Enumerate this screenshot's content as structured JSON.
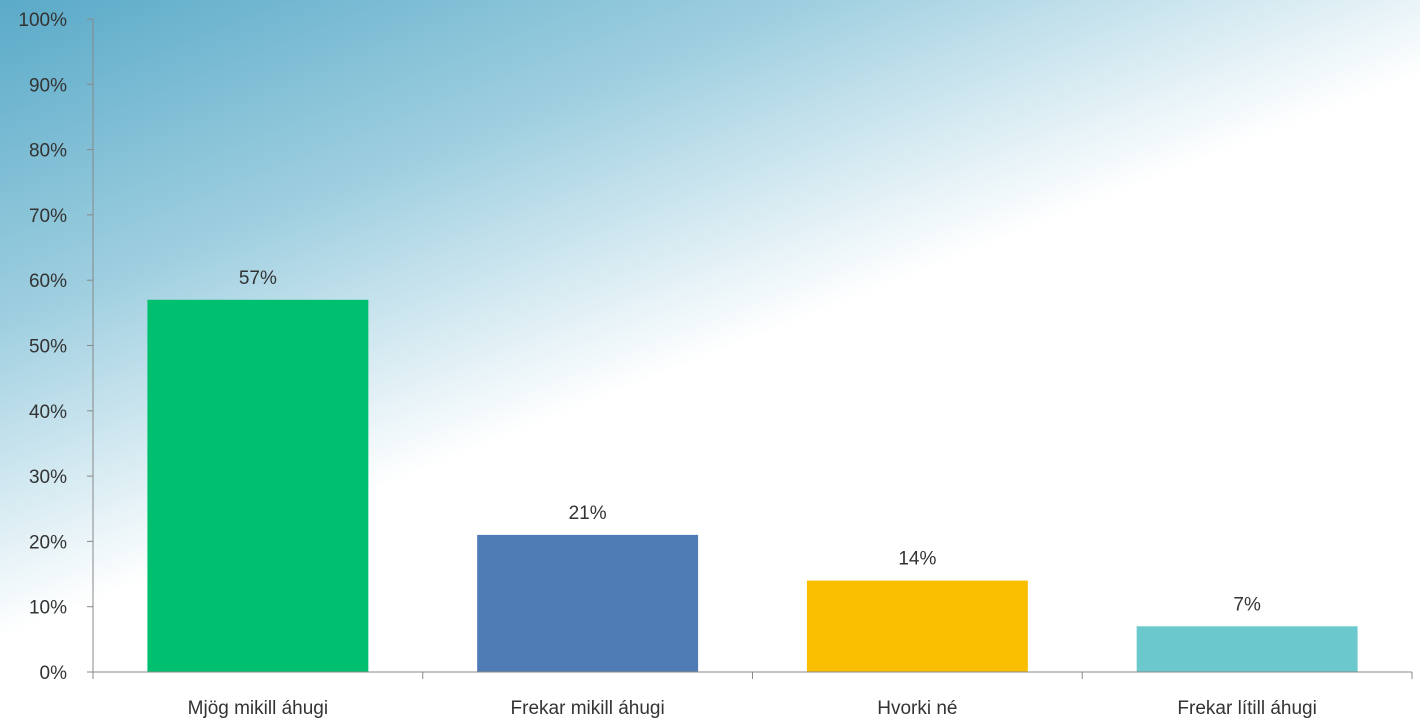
{
  "chart_data": {
    "type": "bar",
    "categories": [
      "Mjög mikill áhugi",
      "Frekar mikill áhugi",
      "Hvorki né",
      "Frekar lítill áhugi"
    ],
    "values": [
      57,
      21,
      14,
      7
    ],
    "value_labels": [
      "57%",
      "21%",
      "14%",
      "7%"
    ],
    "colors": [
      "#00bf6f",
      "#507cb6",
      "#f9be00",
      "#6bc8cd"
    ],
    "ylim": [
      0,
      100
    ],
    "yticks": [
      0,
      10,
      20,
      30,
      40,
      50,
      60,
      70,
      80,
      90,
      100
    ],
    "ytick_labels": [
      "0%",
      "10%",
      "20%",
      "30%",
      "40%",
      "50%",
      "60%",
      "70%",
      "80%",
      "90%",
      "100%"
    ],
    "title": "",
    "xlabel": "",
    "ylabel": "",
    "grid": false,
    "legend": "none"
  },
  "style": {
    "background_gradient": [
      "#5aaac8",
      "#ffffff"
    ],
    "axis_color": "#888888",
    "text_color": "#333333"
  }
}
